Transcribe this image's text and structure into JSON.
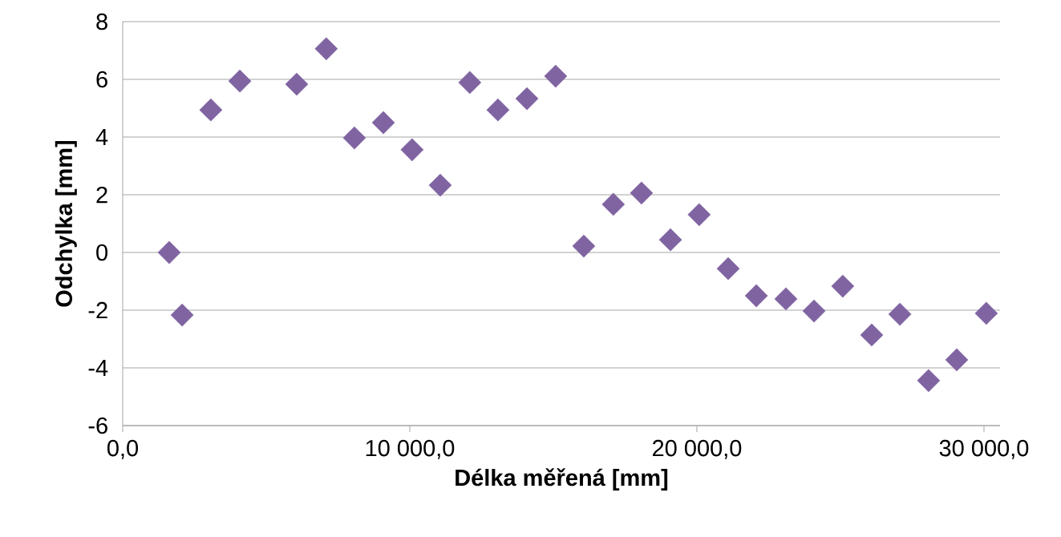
{
  "chart_data": {
    "type": "scatter",
    "xlabel": "Délka měřená [mm]",
    "ylabel": "Odchylka  [mm]",
    "color": "#8064a2",
    "marker": "diamond",
    "grid": "y",
    "x": [
      1620,
      2070,
      3070,
      4080,
      6060,
      7090,
      8070,
      9080,
      10080,
      11060,
      12090,
      13070,
      14080,
      15080,
      16060,
      17090,
      18070,
      19080,
      20080,
      21090,
      22070,
      23100,
      24080,
      25080,
      26090,
      27070,
      28070,
      29050,
      30080
    ],
    "values": [
      0,
      -2.17,
      4.94,
      5.94,
      5.83,
      7.06,
      3.97,
      4.5,
      3.56,
      2.33,
      5.89,
      4.94,
      5.33,
      6.11,
      0.22,
      1.67,
      2.06,
      0.44,
      1.31,
      -0.56,
      -1.5,
      -1.61,
      -2.03,
      -1.17,
      -2.86,
      -2.14,
      -4.44,
      -3.72,
      -2.11
    ],
    "xlim": [
      0,
      30560
    ],
    "ylim": [
      -6,
      8
    ],
    "xticks": [
      {
        "value": 0,
        "label": "0,0"
      },
      {
        "value": 10000,
        "label": "10 000,0"
      },
      {
        "value": 20000,
        "label": "20 000,0"
      },
      {
        "value": 30000,
        "label": "30 000,0"
      }
    ],
    "yticks": [
      -6,
      -4,
      -2,
      0,
      2,
      4,
      6,
      8
    ]
  }
}
